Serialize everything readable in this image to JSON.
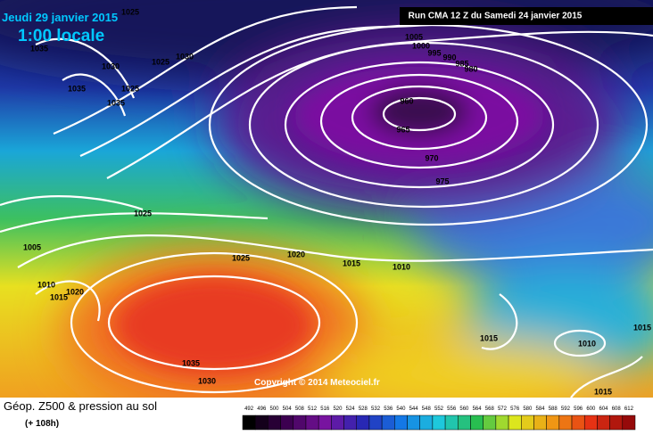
{
  "header": {
    "date": "Jeudi 29 janvier 2015",
    "time": "1:00 locale",
    "run": "Run CMA 12 Z du Samedi 24 janvier 2015"
  },
  "isobar_labels": [
    "1025",
    "1035",
    "1030",
    "1035",
    "1025",
    "1035",
    "1025",
    "1030",
    "1005",
    "1000",
    "995",
    "990",
    "985",
    "980",
    "960",
    "965",
    "970",
    "975",
    "1025",
    "1005",
    "1025",
    "1020",
    "1015",
    "1010",
    "1010",
    "1020",
    "1015",
    "1015",
    "1010",
    "1015",
    "1035",
    "1030",
    "1015"
  ],
  "copyright": "Copyright © 2014 Meteociel.fr",
  "footer": {
    "title": "Géop. Z500 & pression au sol",
    "lead": "(+ 108h)"
  },
  "colorbar": [
    492,
    496,
    500,
    504,
    508,
    512,
    516,
    520,
    524,
    528,
    532,
    536,
    540,
    544,
    548,
    552,
    556,
    560,
    564,
    568,
    572,
    576,
    580,
    584,
    588,
    592,
    596,
    600,
    604,
    608,
    612
  ]
}
